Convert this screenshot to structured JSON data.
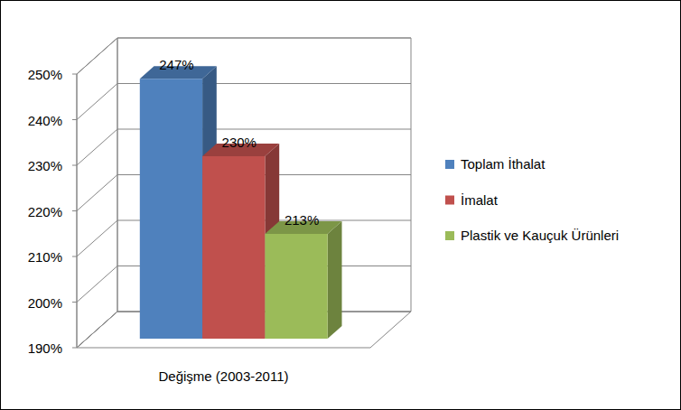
{
  "chart_data": {
    "type": "bar",
    "categories": [
      "Değişme (2003-2011)"
    ],
    "series": [
      {
        "name": "Toplam İthalat",
        "color": "#4f81bd",
        "values": [
          247
        ],
        "value_labels": [
          "247%"
        ]
      },
      {
        "name": "İmalat",
        "color": "#c0504d",
        "values": [
          230
        ],
        "value_labels": [
          "230%"
        ]
      },
      {
        "name": "Plastik ve Kauçuk Ürünleri",
        "color": "#9bbb59",
        "values": [
          213
        ],
        "value_labels": [
          "213%"
        ]
      }
    ],
    "ylim": [
      190,
      250
    ],
    "yticks": [
      {
        "value": 190,
        "label": "190%"
      },
      {
        "value": 200,
        "label": "200%"
      },
      {
        "value": 210,
        "label": "210%"
      },
      {
        "value": 220,
        "label": "220%"
      },
      {
        "value": 230,
        "label": "230%"
      },
      {
        "value": 240,
        "label": "240%"
      },
      {
        "value": 250,
        "label": "250%"
      }
    ],
    "grid": true,
    "legend": "right",
    "data_labels": true
  }
}
